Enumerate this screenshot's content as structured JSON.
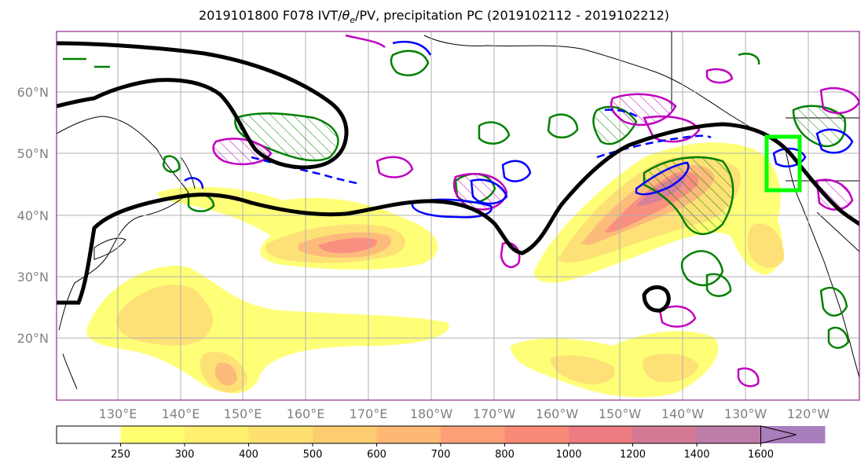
{
  "title_main": "2019101800 F078 IVT/",
  "title_theta": "θ",
  "title_sub": "e",
  "title_rest": "/PV, precipitation PC (2019102112 - 2019102212)",
  "chart_data": {
    "type": "map",
    "lat_ticks": [
      "20°N",
      "30°N",
      "40°N",
      "50°N",
      "60°N"
    ],
    "lat_values": [
      20,
      30,
      40,
      50,
      60
    ],
    "lon_ticks": [
      "130°E",
      "140°E",
      "150°E",
      "160°E",
      "170°E",
      "180°W",
      "170°W",
      "160°W",
      "150°W",
      "140°W",
      "130°W",
      "120°W"
    ],
    "lon_values": [
      130,
      140,
      150,
      160,
      170,
      180,
      190,
      200,
      210,
      220,
      230,
      240
    ],
    "lon_range": [
      120,
      248
    ],
    "lat_range": [
      10,
      70
    ],
    "grid": true,
    "colorbar": {
      "levels": [
        250,
        300,
        400,
        500,
        600,
        700,
        800,
        1000,
        1200,
        1400,
        1600
      ],
      "colors": [
        "#ffff70",
        "#fff070",
        "#fde06f",
        "#fdcd71",
        "#fdb874",
        "#fda077",
        "#f98a78",
        "#ec7b82",
        "#d57a94",
        "#bd7da8",
        "#a97ebd"
      ],
      "extend": "max"
    },
    "target_box": {
      "lon": [
        236,
        241
      ],
      "lat": [
        44,
        52
      ]
    },
    "colors": {
      "black_contour": "#000000",
      "green_contour": "#008000",
      "magenta_contour": "#c000c0",
      "blue_contour": "#0000ff",
      "target_box": "#00ff00"
    }
  }
}
